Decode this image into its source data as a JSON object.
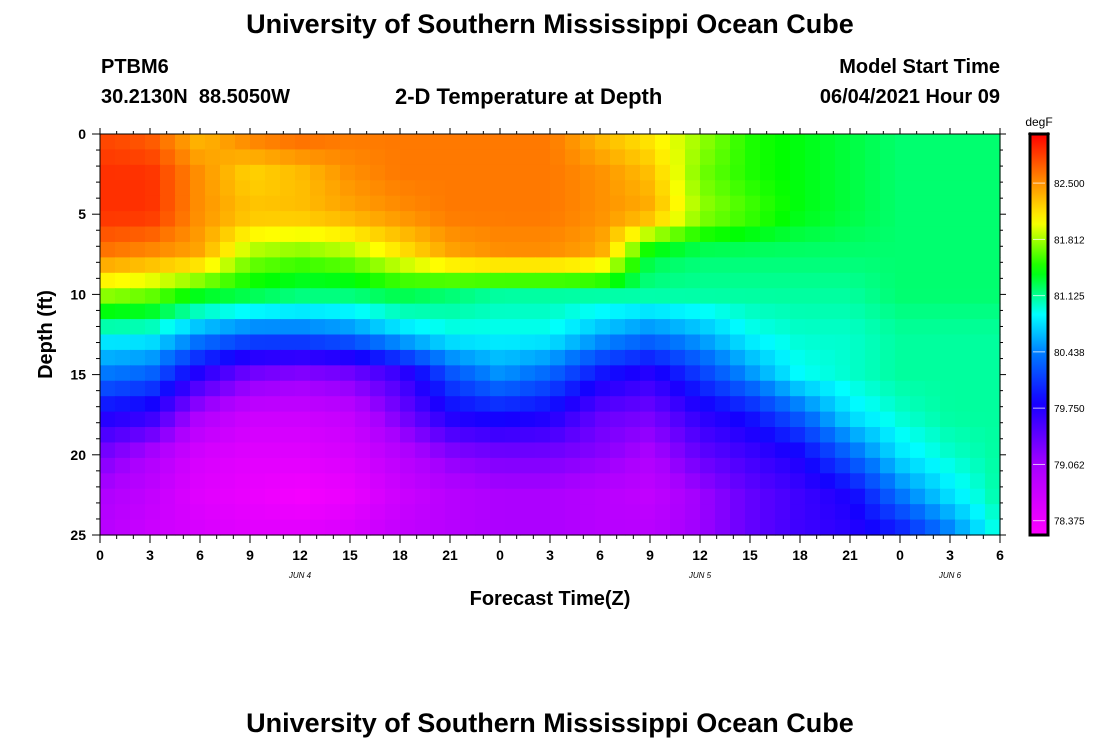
{
  "page": {
    "title": "University of Southern Mississippi Ocean Cube",
    "footer_title": "University of Southern Mississippi Ocean Cube",
    "station_id": "PTBM6",
    "station_coords": "30.2130N  88.5050W",
    "plot_title": "2-D Temperature at Depth",
    "model_start_label": "Model Start Time",
    "model_start_value": "06/04/2021 Hour 09"
  },
  "chart_data": {
    "type": "heatmap",
    "title": "2-D Temperature at Depth",
    "xlabel": "Forecast Time(Z)",
    "ylabel": "Depth (ft)",
    "x_range_hours": [
      0,
      54
    ],
    "y_range_ft": [
      0,
      25
    ],
    "x_ticks": [
      "0",
      "3",
      "6",
      "9",
      "12",
      "15",
      "18",
      "21",
      "0",
      "3",
      "6",
      "9",
      "12",
      "15",
      "18",
      "21",
      "0",
      "3",
      "6"
    ],
    "y_ticks": [
      "0",
      "5",
      "10",
      "15",
      "20",
      "25"
    ],
    "date_labels": [
      {
        "text": "JUN 4",
        "hour": 12
      },
      {
        "text": "JUN 5",
        "hour": 36
      },
      {
        "text": "JUN 6",
        "hour": 51
      }
    ],
    "colorbar": {
      "unit": "degF",
      "min": 78.2,
      "max": 83.1,
      "ticks": [
        "82.500",
        "81.812",
        "81.125",
        "80.438",
        "79.750",
        "79.062",
        "78.375"
      ],
      "tick_values": [
        82.5,
        81.812,
        81.125,
        80.438,
        79.75,
        79.062,
        78.375
      ]
    },
    "grid_hours": [
      0,
      3,
      6,
      9,
      12,
      15,
      18,
      21,
      24,
      27,
      30,
      33,
      36,
      39,
      42,
      45,
      48,
      51,
      54
    ],
    "grid_depths_ft": [
      0,
      2.5,
      5,
      7.5,
      10,
      12.5,
      15,
      17.5,
      20,
      22.5,
      25
    ],
    "temperature_degF": [
      [
        82.8,
        82.7,
        82.3,
        82.6,
        82.7,
        82.6,
        82.6,
        82.6,
        82.6,
        82.6,
        82.3,
        82.1,
        81.8,
        81.5,
        81.4,
        81.3,
        81.2,
        81.2,
        81.2
      ],
      [
        82.9,
        82.9,
        82.5,
        82.2,
        82.3,
        82.5,
        82.6,
        82.6,
        82.6,
        82.6,
        82.5,
        82.3,
        81.7,
        81.5,
        81.4,
        81.3,
        81.2,
        81.2,
        81.2
      ],
      [
        82.9,
        82.9,
        82.5,
        82.3,
        82.3,
        82.4,
        82.5,
        82.6,
        82.6,
        82.6,
        82.5,
        82.4,
        81.8,
        81.6,
        81.4,
        81.3,
        81.2,
        81.2,
        81.2
      ],
      [
        82.6,
        82.5,
        82.4,
        81.8,
        81.7,
        81.8,
        82.1,
        82.4,
        82.5,
        82.5,
        82.4,
        81.3,
        81.2,
        81.2,
        81.2,
        81.2,
        81.2,
        81.2,
        81.2
      ],
      [
        81.8,
        81.7,
        81.4,
        81.3,
        81.2,
        81.2,
        81.3,
        81.2,
        81.1,
        81.1,
        81.1,
        81.1,
        81.1,
        81.1,
        81.1,
        81.1,
        81.2,
        81.2,
        81.2
      ],
      [
        80.9,
        80.9,
        80.5,
        80.3,
        80.3,
        80.4,
        80.7,
        80.9,
        80.9,
        80.9,
        80.6,
        80.4,
        80.6,
        80.9,
        81.0,
        81.0,
        81.1,
        81.1,
        81.1
      ],
      [
        80.4,
        80.3,
        79.7,
        79.3,
        79.2,
        79.3,
        79.6,
        80.2,
        80.5,
        80.3,
        79.9,
        79.7,
        80.1,
        80.5,
        80.9,
        81.0,
        81.1,
        81.1,
        81.1
      ],
      [
        79.8,
        79.7,
        79.0,
        78.7,
        78.7,
        78.8,
        79.3,
        79.8,
        79.9,
        79.8,
        79.4,
        79.3,
        79.7,
        79.9,
        80.3,
        80.8,
        81.0,
        81.1,
        81.1
      ],
      [
        79.3,
        79.0,
        78.6,
        78.5,
        78.5,
        78.6,
        78.9,
        79.2,
        79.3,
        79.3,
        79.2,
        79.0,
        79.4,
        79.6,
        79.8,
        80.3,
        80.8,
        81.0,
        81.1
      ],
      [
        79.0,
        78.8,
        78.5,
        78.4,
        78.3,
        78.4,
        78.7,
        78.9,
        79.0,
        79.0,
        78.9,
        78.8,
        79.1,
        79.4,
        79.6,
        79.8,
        80.4,
        80.8,
        81.1
      ],
      [
        78.9,
        78.7,
        78.6,
        78.5,
        78.5,
        78.6,
        78.8,
        78.9,
        79.0,
        79.0,
        78.9,
        78.9,
        79.1,
        79.4,
        79.6,
        79.7,
        79.9,
        80.4,
        81.0
      ]
    ]
  }
}
